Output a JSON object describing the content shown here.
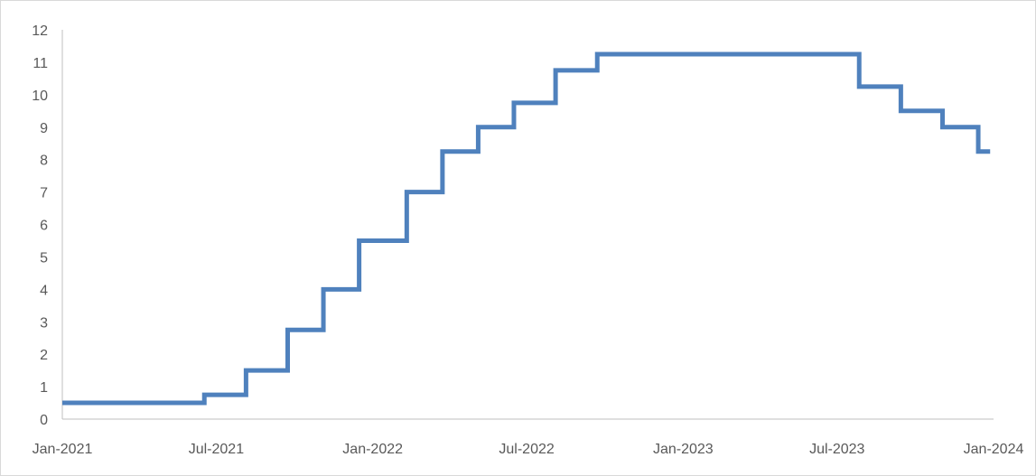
{
  "chart_data": {
    "type": "line",
    "step": true,
    "title": "",
    "xlabel": "",
    "ylabel": "",
    "ylim": [
      0,
      12
    ],
    "yticks": [
      "0",
      "1",
      "2",
      "3",
      "4",
      "5",
      "6",
      "7",
      "8",
      "9",
      "10",
      "11",
      "12"
    ],
    "xticks": [
      {
        "label": "Jan-2021",
        "date": "2021-01-01"
      },
      {
        "label": "Jul-2021",
        "date": "2021-07-01"
      },
      {
        "label": "Jan-2022",
        "date": "2022-01-01"
      },
      {
        "label": "Jul-2022",
        "date": "2022-07-01"
      },
      {
        "label": "Jan-2023",
        "date": "2023-01-01"
      },
      {
        "label": "Jul-2023",
        "date": "2023-07-01"
      },
      {
        "label": "Jan-2024",
        "date": "2024-01-01"
      }
    ],
    "xlim": [
      "2021-01-01",
      "2024-01-01"
    ],
    "grid": false,
    "legend": "none",
    "color": "#4f81bd",
    "series": [
      {
        "values": [
          {
            "date": "2021-01-01",
            "value": 0.5
          },
          {
            "date": "2021-06-17",
            "value": 0.75
          },
          {
            "date": "2021-08-05",
            "value": 1.5
          },
          {
            "date": "2021-09-23",
            "value": 2.75
          },
          {
            "date": "2021-11-04",
            "value": 4.0
          },
          {
            "date": "2021-12-16",
            "value": 5.5
          },
          {
            "date": "2022-02-10",
            "value": 7.0
          },
          {
            "date": "2022-03-24",
            "value": 8.25
          },
          {
            "date": "2022-05-05",
            "value": 9.0
          },
          {
            "date": "2022-06-16",
            "value": 9.75
          },
          {
            "date": "2022-08-04",
            "value": 10.75
          },
          {
            "date": "2022-09-22",
            "value": 11.25
          },
          {
            "date": "2023-07-27",
            "value": 10.25
          },
          {
            "date": "2023-09-14",
            "value": 9.5
          },
          {
            "date": "2023-11-02",
            "value": 9.0
          },
          {
            "date": "2023-12-14",
            "value": 8.25
          },
          {
            "date": "2023-12-28",
            "value": 8.25
          }
        ]
      }
    ]
  }
}
